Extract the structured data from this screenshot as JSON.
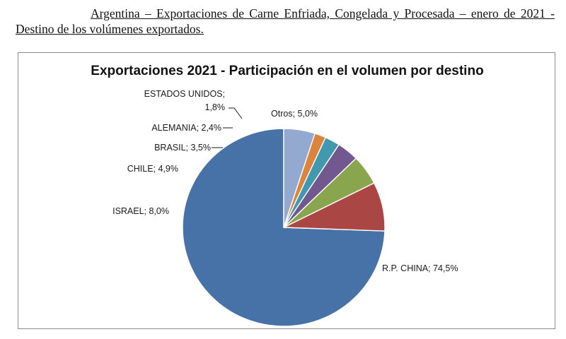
{
  "heading": {
    "text": "Argentina – Exportaciones de Carne Enfriada, Congelada y Procesada – enero de 2021 - Destino de los volúmenes exportados."
  },
  "chart_data": {
    "type": "pie",
    "title": "Exportaciones 2021 - Participación en el volumen por destino",
    "unit": "%",
    "slices": [
      {
        "name": "R.P. CHINA",
        "value": 74.5,
        "label": "R.P. CHINA; 74,5%",
        "color": "#4672A8"
      },
      {
        "name": "ISRAEL",
        "value": 8.0,
        "label": "ISRAEL; 8,0%",
        "color": "#AA4643"
      },
      {
        "name": "CHILE",
        "value": 4.9,
        "label": "CHILE; 4,9%",
        "color": "#89A54E"
      },
      {
        "name": "BRASIL",
        "value": 3.5,
        "label": "BRASIL; 3,5%",
        "color": "#71588F"
      },
      {
        "name": "ALEMANIA",
        "value": 2.4,
        "label": "ALEMANIA; 2,4%",
        "color": "#4198AF"
      },
      {
        "name": "ESTADOS UNIDOS",
        "value": 1.8,
        "label_lines": [
          "ESTADOS UNIDOS;",
          "1,8%"
        ],
        "color": "#DB843D"
      },
      {
        "name": "Otros",
        "value": 5.0,
        "label": "Otros; 5,0%",
        "color": "#93A9CF"
      }
    ]
  }
}
